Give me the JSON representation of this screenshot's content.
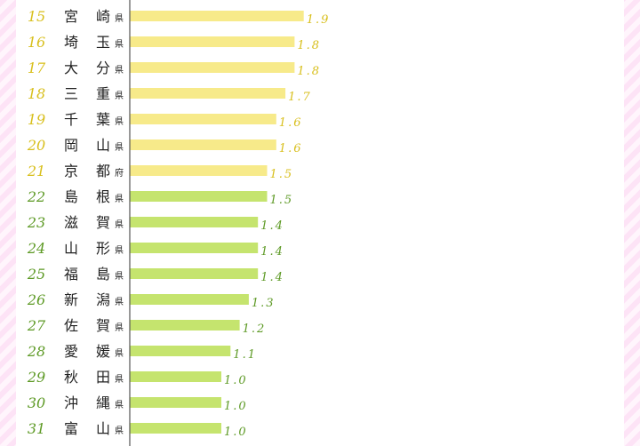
{
  "colors": {
    "group1_bar": "#f7ea8a",
    "group1_text": "#d8bf1c",
    "group2_bar": "#c5e46e",
    "group2_text": "#5e9a26",
    "axis": "#555555"
  },
  "chart_data": {
    "type": "bar",
    "orientation": "horizontal",
    "xlim": [
      0,
      2.0
    ],
    "rows": [
      {
        "rank": "15",
        "name": [
          "宮",
          "崎"
        ],
        "suffix": "県",
        "value": 1.9,
        "label": "1.9",
        "group": 1
      },
      {
        "rank": "16",
        "name": [
          "埼",
          "玉"
        ],
        "suffix": "県",
        "value": 1.8,
        "label": "1.8",
        "group": 1
      },
      {
        "rank": "17",
        "name": [
          "大",
          "分"
        ],
        "suffix": "県",
        "value": 1.8,
        "label": "1.8",
        "group": 1
      },
      {
        "rank": "18",
        "name": [
          "三",
          "重"
        ],
        "suffix": "県",
        "value": 1.7,
        "label": "1.7",
        "group": 1
      },
      {
        "rank": "19",
        "name": [
          "千",
          "葉"
        ],
        "suffix": "県",
        "value": 1.6,
        "label": "1.6",
        "group": 1
      },
      {
        "rank": "20",
        "name": [
          "岡",
          "山"
        ],
        "suffix": "県",
        "value": 1.6,
        "label": "1.6",
        "group": 1
      },
      {
        "rank": "21",
        "name": [
          "京",
          "都"
        ],
        "suffix": "府",
        "value": 1.5,
        "label": "1.5",
        "group": 1
      },
      {
        "rank": "22",
        "name": [
          "島",
          "根"
        ],
        "suffix": "県",
        "value": 1.5,
        "label": "1.5",
        "group": 2
      },
      {
        "rank": "23",
        "name": [
          "滋",
          "賀"
        ],
        "suffix": "県",
        "value": 1.4,
        "label": "1.4",
        "group": 2
      },
      {
        "rank": "24",
        "name": [
          "山",
          "形"
        ],
        "suffix": "県",
        "value": 1.4,
        "label": "1.4",
        "group": 2
      },
      {
        "rank": "25",
        "name": [
          "福",
          "島"
        ],
        "suffix": "県",
        "value": 1.4,
        "label": "1.4",
        "group": 2
      },
      {
        "rank": "26",
        "name": [
          "新",
          "潟"
        ],
        "suffix": "県",
        "value": 1.3,
        "label": "1.3",
        "group": 2
      },
      {
        "rank": "27",
        "name": [
          "佐",
          "賀"
        ],
        "suffix": "県",
        "value": 1.2,
        "label": "1.2",
        "group": 2
      },
      {
        "rank": "28",
        "name": [
          "愛",
          "媛"
        ],
        "suffix": "県",
        "value": 1.1,
        "label": "1.1",
        "group": 2
      },
      {
        "rank": "29",
        "name": [
          "秋",
          "田"
        ],
        "suffix": "県",
        "value": 1.0,
        "label": "1.0",
        "group": 2
      },
      {
        "rank": "30",
        "name": [
          "沖",
          "縄"
        ],
        "suffix": "県",
        "value": 1.0,
        "label": "1.0",
        "group": 2
      },
      {
        "rank": "31",
        "name": [
          "富",
          "山"
        ],
        "suffix": "県",
        "value": 1.0,
        "label": "1.0",
        "group": 2
      }
    ]
  }
}
